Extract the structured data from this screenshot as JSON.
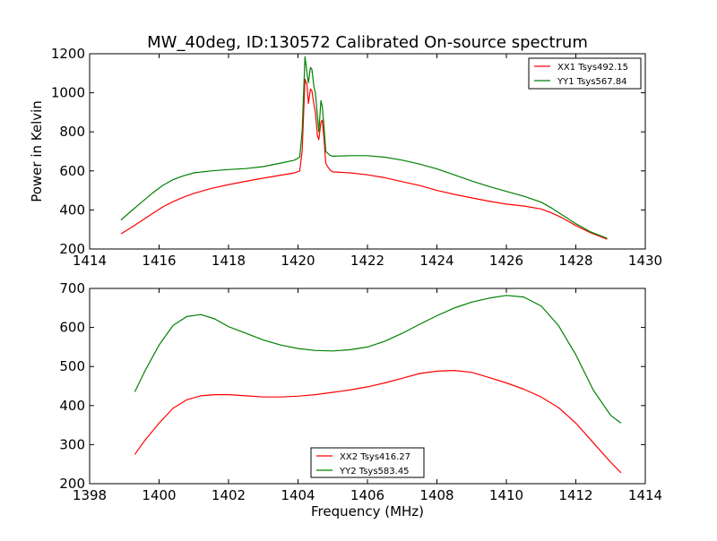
{
  "figure": {
    "title": "MW_40deg, ID:130572 Calibrated On-source spectrum",
    "xlabel": "Frequency (MHz)"
  },
  "chart_data": [
    {
      "type": "line",
      "title": "MW_40deg, ID:130572 Calibrated On-source spectrum",
      "xlabel": "",
      "ylabel": "Power in Kelvin",
      "xlim": [
        1414,
        1430
      ],
      "ylim": [
        200,
        1200
      ],
      "xticks": [
        1414,
        1416,
        1418,
        1420,
        1422,
        1424,
        1426,
        1428,
        1430
      ],
      "yticks": [
        200,
        400,
        600,
        800,
        1000,
        1200
      ],
      "grid": false,
      "legend_position": "top-right",
      "series": [
        {
          "name": "XX1 Tsys492.15",
          "color": "#ff0000",
          "x": [
            1414.9,
            1415.2,
            1415.5,
            1415.8,
            1416.1,
            1416.4,
            1416.7,
            1417.0,
            1417.5,
            1418.0,
            1418.5,
            1419.0,
            1419.5,
            1419.9,
            1420.05,
            1420.12,
            1420.2,
            1420.26,
            1420.3,
            1420.36,
            1420.4,
            1420.46,
            1420.5,
            1420.56,
            1420.6,
            1420.66,
            1420.7,
            1420.75,
            1420.8,
            1420.86,
            1420.92,
            1421.0,
            1421.5,
            1422.0,
            1422.5,
            1423.0,
            1423.5,
            1424.0,
            1424.5,
            1425.0,
            1425.5,
            1426.0,
            1426.5,
            1427.0,
            1427.3,
            1427.6,
            1428.0,
            1428.4,
            1428.9
          ],
          "y": [
            278,
            310,
            345,
            380,
            415,
            442,
            465,
            485,
            510,
            530,
            547,
            563,
            578,
            590,
            600,
            700,
            1070,
            1040,
            945,
            1020,
            1010,
            940,
            900,
            780,
            760,
            850,
            860,
            760,
            640,
            620,
            605,
            595,
            590,
            580,
            565,
            545,
            525,
            500,
            480,
            462,
            445,
            430,
            420,
            405,
            385,
            360,
            320,
            285,
            250
          ]
        },
        {
          "name": "YY1 Tsys567.84",
          "color": "#008000",
          "x": [
            1414.9,
            1415.2,
            1415.5,
            1415.8,
            1416.1,
            1416.4,
            1416.7,
            1417.0,
            1417.5,
            1418.0,
            1418.5,
            1419.0,
            1419.5,
            1419.9,
            1420.05,
            1420.12,
            1420.2,
            1420.26,
            1420.3,
            1420.36,
            1420.4,
            1420.46,
            1420.5,
            1420.56,
            1420.6,
            1420.66,
            1420.7,
            1420.75,
            1420.8,
            1420.86,
            1420.92,
            1421.0,
            1421.5,
            1422.0,
            1422.5,
            1423.0,
            1423.5,
            1424.0,
            1424.5,
            1425.0,
            1425.5,
            1426.0,
            1426.5,
            1427.0,
            1427.3,
            1427.6,
            1428.0,
            1428.4,
            1428.9
          ],
          "y": [
            348,
            395,
            440,
            485,
            525,
            555,
            575,
            590,
            600,
            607,
            612,
            622,
            640,
            655,
            670,
            800,
            1185,
            1100,
            1050,
            1130,
            1120,
            1030,
            1000,
            880,
            800,
            960,
            930,
            820,
            700,
            690,
            680,
            675,
            678,
            678,
            670,
            655,
            635,
            610,
            580,
            548,
            520,
            495,
            470,
            440,
            410,
            375,
            330,
            290,
            255
          ]
        }
      ]
    },
    {
      "type": "line",
      "title": "",
      "xlabel": "Frequency (MHz)",
      "ylabel": "",
      "xlim": [
        1398,
        1414
      ],
      "ylim": [
        200,
        700
      ],
      "xticks": [
        1398,
        1400,
        1402,
        1404,
        1406,
        1408,
        1410,
        1412,
        1414
      ],
      "yticks": [
        200,
        300,
        400,
        500,
        600,
        700
      ],
      "grid": false,
      "legend_position": "lower-center",
      "series": [
        {
          "name": "XX2 Tsys416.27",
          "color": "#ff0000",
          "x": [
            1399.3,
            1399.6,
            1400.0,
            1400.4,
            1400.8,
            1401.2,
            1401.6,
            1402.0,
            1402.5,
            1403.0,
            1403.5,
            1404.0,
            1404.5,
            1405.0,
            1405.5,
            1406.0,
            1406.5,
            1407.0,
            1407.5,
            1408.0,
            1408.5,
            1409.0,
            1409.5,
            1410.0,
            1410.5,
            1411.0,
            1411.5,
            1412.0,
            1412.5,
            1413.0,
            1413.3
          ],
          "y": [
            275,
            312,
            355,
            393,
            415,
            425,
            428,
            428,
            425,
            422,
            422,
            424,
            428,
            434,
            440,
            448,
            458,
            470,
            482,
            488,
            490,
            485,
            472,
            458,
            442,
            422,
            395,
            355,
            305,
            255,
            228
          ]
        },
        {
          "name": "YY2 Tsys583.45",
          "color": "#008000",
          "x": [
            1399.3,
            1399.6,
            1400.0,
            1400.4,
            1400.8,
            1401.2,
            1401.6,
            1402.0,
            1402.5,
            1403.0,
            1403.5,
            1404.0,
            1404.5,
            1405.0,
            1405.5,
            1406.0,
            1406.5,
            1407.0,
            1407.5,
            1408.0,
            1408.5,
            1409.0,
            1409.5,
            1410.0,
            1410.5,
            1411.0,
            1411.5,
            1412.0,
            1412.5,
            1413.0,
            1413.3
          ],
          "y": [
            435,
            490,
            555,
            605,
            628,
            633,
            622,
            602,
            585,
            568,
            555,
            546,
            541,
            540,
            543,
            550,
            565,
            585,
            608,
            630,
            650,
            665,
            675,
            682,
            678,
            655,
            605,
            530,
            440,
            375,
            355
          ]
        }
      ]
    }
  ]
}
